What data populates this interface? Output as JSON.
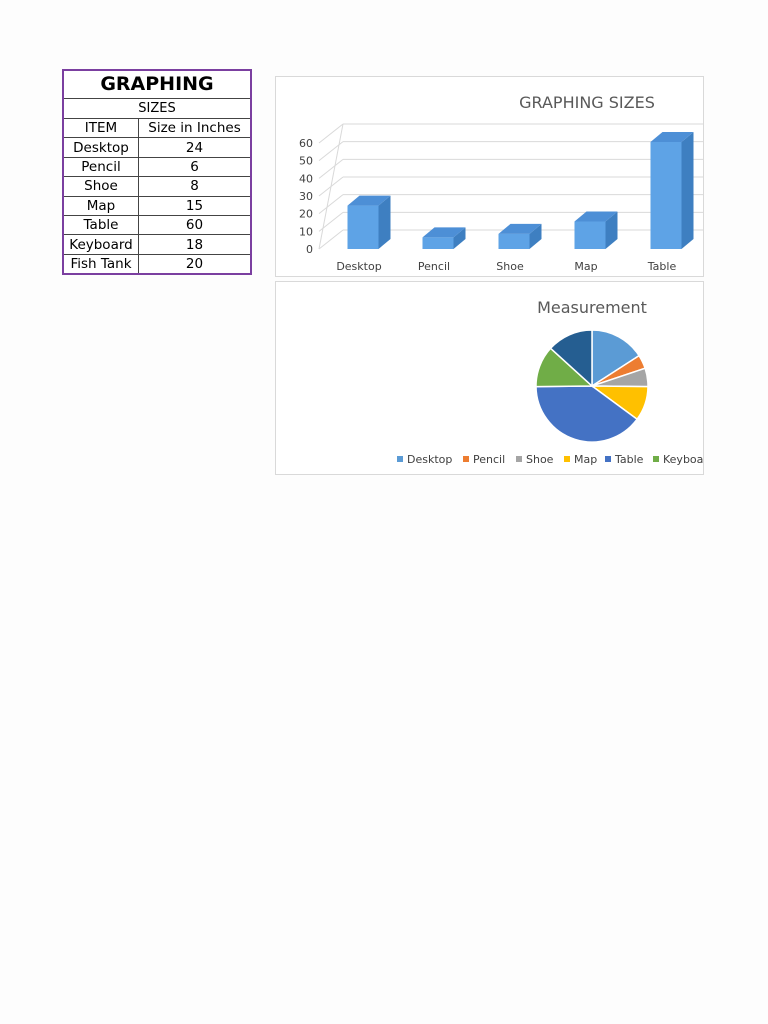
{
  "sheet": {
    "title": "GRAPHING",
    "subtitle": "SIZES",
    "headers": [
      "ITEM",
      "Size in Inches"
    ],
    "rows": [
      [
        "Desktop",
        "24"
      ],
      [
        "Pencil",
        "6"
      ],
      [
        "Shoe",
        "8"
      ],
      [
        "Map",
        "15"
      ],
      [
        "Table",
        "60"
      ],
      [
        "Keyboard",
        "18"
      ],
      [
        "Fish Tank",
        "20"
      ]
    ]
  },
  "colors": {
    "accent_border": "#7b3fa0",
    "bar_front": "#5ea3e6",
    "bar_side": "#3e7fc1",
    "bar_top": "#4d8fd6"
  },
  "chart_data": [
    {
      "type": "bar",
      "title": "GRAPHING SIZES",
      "categories": [
        "Desktop",
        "Pencil",
        "Shoe",
        "Map",
        "Table"
      ],
      "values": [
        24,
        6,
        8,
        15,
        60
      ],
      "yticks": [
        "0",
        "10",
        "20",
        "30",
        "40",
        "50",
        "60"
      ],
      "ylim": [
        0,
        60
      ],
      "grid": true
    },
    {
      "type": "pie",
      "title": "Measurement",
      "categories": [
        "Desktop",
        "Pencil",
        "Shoe",
        "Map",
        "Table",
        "Keyboard",
        "Fish Tank"
      ],
      "values": [
        24,
        6,
        8,
        15,
        60,
        18,
        20
      ],
      "colors": [
        "#5b9bd5",
        "#ed7d31",
        "#a5a5a5",
        "#ffc000",
        "#4472c4",
        "#70ad47",
        "#255e91"
      ],
      "legend_labels": [
        "Desktop",
        "Pencil",
        "Shoe",
        "Map",
        "Table",
        "Keyboa"
      ],
      "legend_position": "bottom"
    }
  ]
}
